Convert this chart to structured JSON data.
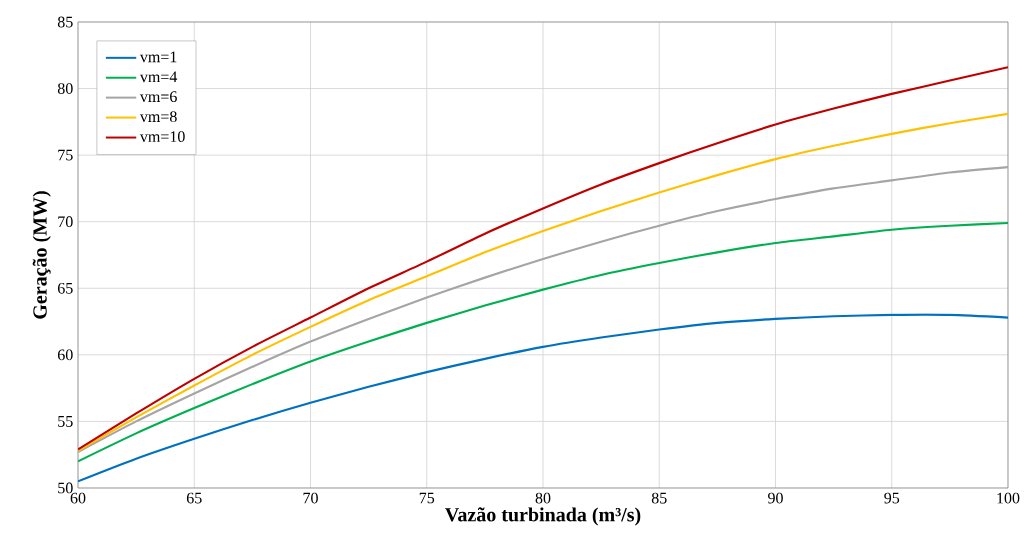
{
  "chart_data": {
    "type": "line",
    "xlabel": "Vazão turbinada (m³/s)",
    "ylabel": "Geração (MW)",
    "x": [
      60,
      62.5,
      65,
      67.5,
      70,
      72.5,
      75,
      77.5,
      80,
      82.5,
      85,
      87.5,
      90,
      92.5,
      95,
      97.5,
      100
    ],
    "xlim": [
      60,
      100
    ],
    "xticks": [
      60,
      65,
      70,
      75,
      80,
      85,
      90,
      95,
      100
    ],
    "ylim": [
      50,
      85
    ],
    "yticks": [
      50,
      55,
      60,
      65,
      70,
      75,
      80,
      85
    ],
    "grid": true,
    "legend": "top left",
    "marker": "none",
    "line_style": "solid",
    "series": [
      {
        "name": "vm=1",
        "color": "#0070c0",
        "values": [
          50.5,
          52.2,
          53.7,
          55.1,
          56.4,
          57.6,
          58.7,
          59.7,
          60.6,
          61.3,
          61.9,
          62.4,
          62.7,
          62.9,
          63.0,
          63.0,
          62.8
        ]
      },
      {
        "name": "vm=4",
        "color": "#00b050",
        "values": [
          52.0,
          54.1,
          56.0,
          57.8,
          59.5,
          61.0,
          62.4,
          63.7,
          64.9,
          66.0,
          66.9,
          67.7,
          68.4,
          68.9,
          69.4,
          69.7,
          69.9
        ]
      },
      {
        "name": "vm=6",
        "color": "#a5a5a5",
        "values": [
          52.7,
          55.0,
          57.1,
          59.1,
          61.0,
          62.7,
          64.3,
          65.8,
          67.2,
          68.5,
          69.7,
          70.8,
          71.7,
          72.5,
          73.1,
          73.7,
          74.1
        ]
      },
      {
        "name": "vm=8",
        "color": "#ffc000",
        "values": [
          52.8,
          55.3,
          57.7,
          60.0,
          62.1,
          64.1,
          65.9,
          67.7,
          69.3,
          70.8,
          72.2,
          73.5,
          74.7,
          75.7,
          76.6,
          77.4,
          78.1
        ]
      },
      {
        "name": "vm=10",
        "color": "#c00000",
        "values": [
          52.9,
          55.6,
          58.2,
          60.6,
          62.8,
          65.0,
          67.0,
          69.1,
          71.0,
          72.8,
          74.4,
          75.9,
          77.3,
          78.5,
          79.6,
          80.6,
          81.6
        ]
      }
    ]
  }
}
